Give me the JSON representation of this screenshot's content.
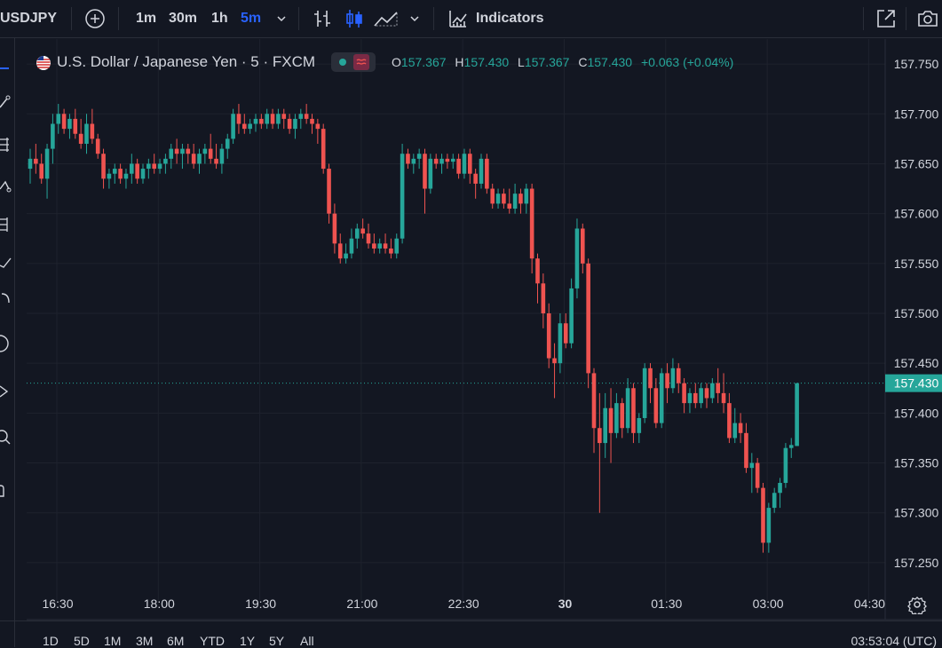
{
  "toolbar": {
    "symbol": "USDJPY",
    "intervals": [
      "1m",
      "30m",
      "1h",
      "5m"
    ],
    "active_interval": "5m",
    "indicators_label": "Indicators"
  },
  "legend": {
    "title": "U.S. Dollar / Japanese Yen · 5 · FXCM",
    "open_label": "O",
    "open": "157.367",
    "high_label": "H",
    "high": "157.430",
    "low_label": "L",
    "low": "157.367",
    "close_label": "C",
    "close": "157.430",
    "change": "+0.063 (+0.04%)"
  },
  "bottom": {
    "ranges": [
      "1D",
      "5D",
      "1M",
      "3M",
      "6M",
      "YTD",
      "1Y",
      "5Y",
      "All"
    ],
    "clock": "03:53:04 (UTC)"
  },
  "colors": {
    "up": "#26a69a",
    "down": "#ef5350",
    "background": "#131722",
    "grid": "#1e222d"
  },
  "chart_data": {
    "type": "candlestick",
    "ylim": [
      157.225,
      157.775
    ],
    "y_ticks": [
      "157.750",
      "157.700",
      "157.650",
      "157.600",
      "157.550",
      "157.500",
      "157.450",
      "157.400",
      "157.350",
      "157.300",
      "157.250"
    ],
    "x_ticks": [
      {
        "label": "16:30",
        "t": 0
      },
      {
        "label": "18:00",
        "t": 18
      },
      {
        "label": "19:30",
        "t": 36
      },
      {
        "label": "21:00",
        "t": 54
      },
      {
        "label": "22:30",
        "t": 72
      },
      {
        "label": "30",
        "t": 90,
        "bold": true
      },
      {
        "label": "01:30",
        "t": 108
      },
      {
        "label": "03:00",
        "t": 126
      },
      {
        "label": "04:30",
        "t": 144
      }
    ],
    "last_price": "157.430",
    "last_value": 157.43,
    "candles": [
      [
        157.645,
        157.665,
        157.63,
        157.655
      ],
      [
        157.655,
        157.67,
        157.64,
        157.65
      ],
      [
        157.65,
        157.66,
        157.63,
        157.635
      ],
      [
        157.635,
        157.67,
        157.615,
        157.665
      ],
      [
        157.665,
        157.7,
        157.65,
        157.69
      ],
      [
        157.69,
        157.71,
        157.68,
        157.7
      ],
      [
        157.7,
        157.705,
        157.68,
        157.685
      ],
      [
        157.685,
        157.7,
        157.675,
        157.695
      ],
      [
        157.695,
        157.705,
        157.675,
        157.68
      ],
      [
        157.68,
        157.695,
        157.665,
        157.67
      ],
      [
        157.67,
        157.7,
        157.66,
        157.69
      ],
      [
        157.69,
        157.705,
        157.67,
        157.675
      ],
      [
        157.675,
        157.68,
        157.655,
        157.66
      ],
      [
        157.66,
        157.665,
        157.625,
        157.635
      ],
      [
        157.635,
        157.645,
        157.625,
        157.64
      ],
      [
        157.64,
        157.65,
        157.63,
        157.645
      ],
      [
        157.645,
        157.65,
        157.63,
        157.635
      ],
      [
        157.635,
        157.645,
        157.625,
        157.64
      ],
      [
        157.64,
        157.66,
        157.63,
        157.65
      ],
      [
        157.65,
        157.655,
        157.63,
        157.635
      ],
      [
        157.635,
        157.65,
        157.63,
        157.645
      ],
      [
        157.645,
        157.655,
        157.635,
        157.65
      ],
      [
        157.65,
        157.66,
        157.64,
        157.645
      ],
      [
        157.645,
        157.655,
        157.64,
        157.65
      ],
      [
        157.65,
        157.66,
        157.64,
        157.655
      ],
      [
        157.655,
        157.67,
        157.645,
        157.665
      ],
      [
        157.665,
        157.675,
        157.65,
        157.66
      ],
      [
        157.66,
        157.67,
        157.645,
        157.665
      ],
      [
        157.665,
        157.67,
        157.65,
        157.66
      ],
      [
        157.66,
        157.67,
        157.645,
        157.65
      ],
      [
        157.65,
        157.665,
        157.64,
        157.66
      ],
      [
        157.66,
        157.67,
        157.65,
        157.665
      ],
      [
        157.665,
        157.68,
        157.65,
        157.655
      ],
      [
        157.655,
        157.67,
        157.645,
        157.65
      ],
      [
        157.65,
        157.67,
        157.64,
        157.665
      ],
      [
        157.665,
        157.68,
        157.655,
        157.675
      ],
      [
        157.675,
        157.705,
        157.67,
        157.7
      ],
      [
        157.7,
        157.71,
        157.68,
        157.69
      ],
      [
        157.69,
        157.7,
        157.68,
        157.685
      ],
      [
        157.685,
        157.695,
        157.68,
        157.69
      ],
      [
        157.69,
        157.7,
        157.682,
        157.695
      ],
      [
        157.695,
        157.7,
        157.685,
        157.69
      ],
      [
        157.69,
        157.705,
        157.685,
        157.7
      ],
      [
        157.7,
        157.705,
        157.685,
        157.69
      ],
      [
        157.69,
        157.705,
        157.685,
        157.7
      ],
      [
        157.7,
        157.705,
        157.685,
        157.695
      ],
      [
        157.695,
        157.7,
        157.68,
        157.685
      ],
      [
        157.685,
        157.7,
        157.675,
        157.695
      ],
      [
        157.695,
        157.705,
        157.685,
        157.7
      ],
      [
        157.7,
        157.71,
        157.69,
        157.695
      ],
      [
        157.695,
        157.7,
        157.68,
        157.69
      ],
      [
        157.69,
        157.695,
        157.67,
        157.685
      ],
      [
        157.685,
        157.69,
        157.64,
        157.645
      ],
      [
        157.645,
        157.65,
        157.59,
        157.6
      ],
      [
        157.6,
        157.61,
        157.56,
        157.57
      ],
      [
        157.57,
        157.58,
        157.55,
        157.555
      ],
      [
        157.555,
        157.57,
        157.55,
        157.56
      ],
      [
        157.56,
        157.585,
        157.555,
        157.575
      ],
      [
        157.575,
        157.59,
        157.565,
        157.585
      ],
      [
        157.585,
        157.595,
        157.575,
        157.58
      ],
      [
        157.58,
        157.59,
        157.565,
        157.57
      ],
      [
        157.57,
        157.58,
        157.56,
        157.565
      ],
      [
        157.565,
        157.575,
        157.56,
        157.57
      ],
      [
        157.57,
        157.58,
        157.56,
        157.565
      ],
      [
        157.565,
        157.575,
        157.555,
        157.56
      ],
      [
        157.56,
        157.58,
        157.555,
        157.575
      ],
      [
        157.575,
        157.67,
        157.57,
        157.66
      ],
      [
        157.66,
        157.665,
        157.645,
        157.65
      ],
      [
        157.65,
        157.66,
        157.64,
        157.655
      ],
      [
        157.655,
        157.665,
        157.645,
        157.66
      ],
      [
        157.66,
        157.665,
        157.6,
        157.625
      ],
      [
        157.625,
        157.66,
        157.62,
        157.655
      ],
      [
        157.655,
        157.66,
        157.645,
        157.65
      ],
      [
        157.65,
        157.66,
        157.64,
        157.655
      ],
      [
        157.655,
        157.66,
        157.645,
        157.652
      ],
      [
        157.652,
        157.66,
        157.645,
        157.655
      ],
      [
        157.655,
        157.66,
        157.635,
        157.64
      ],
      [
        157.64,
        157.665,
        157.635,
        157.66
      ],
      [
        157.66,
        157.665,
        157.63,
        157.64
      ],
      [
        157.64,
        157.645,
        157.615,
        157.63
      ],
      [
        157.63,
        157.66,
        157.625,
        157.655
      ],
      [
        157.655,
        157.66,
        157.62,
        157.625
      ],
      [
        157.625,
        157.63,
        157.605,
        157.61
      ],
      [
        157.61,
        157.625,
        157.605,
        157.62
      ],
      [
        157.62,
        157.625,
        157.605,
        157.61
      ],
      [
        157.61,
        157.625,
        157.6,
        157.605
      ],
      [
        157.605,
        157.63,
        157.6,
        157.62
      ],
      [
        157.62,
        157.625,
        157.6,
        157.61
      ],
      [
        157.61,
        157.63,
        157.6,
        157.625
      ],
      [
        157.625,
        157.63,
        157.54,
        157.555
      ],
      [
        157.555,
        157.56,
        157.51,
        157.53
      ],
      [
        157.53,
        157.54,
        157.485,
        157.5
      ],
      [
        157.5,
        157.51,
        157.445,
        157.455
      ],
      [
        157.455,
        157.47,
        157.415,
        157.45
      ],
      [
        157.45,
        157.5,
        157.44,
        157.49
      ],
      [
        157.49,
        157.5,
        157.465,
        157.47
      ],
      [
        157.47,
        157.535,
        157.465,
        157.525
      ],
      [
        157.525,
        157.595,
        157.515,
        157.585
      ],
      [
        157.585,
        157.59,
        157.54,
        157.55
      ],
      [
        157.55,
        157.555,
        157.425,
        157.44
      ],
      [
        157.44,
        157.445,
        157.36,
        157.385
      ],
      [
        157.385,
        157.42,
        157.3,
        157.37
      ],
      [
        157.37,
        157.42,
        157.355,
        157.405
      ],
      [
        157.405,
        157.425,
        157.35,
        157.38
      ],
      [
        157.38,
        157.42,
        157.375,
        157.41
      ],
      [
        157.41,
        157.415,
        157.375,
        157.385
      ],
      [
        157.385,
        157.435,
        157.38,
        157.425
      ],
      [
        157.425,
        157.43,
        157.37,
        157.38
      ],
      [
        157.38,
        157.4,
        157.37,
        157.395
      ],
      [
        157.395,
        157.45,
        157.39,
        157.445
      ],
      [
        157.445,
        157.45,
        157.41,
        157.425
      ],
      [
        157.425,
        157.435,
        157.385,
        157.39
      ],
      [
        157.39,
        157.445,
        157.385,
        157.44
      ],
      [
        157.44,
        157.45,
        157.41,
        157.425
      ],
      [
        157.425,
        157.455,
        157.42,
        157.445
      ],
      [
        157.445,
        157.45,
        157.42,
        157.43
      ],
      [
        157.43,
        157.435,
        157.4,
        157.41
      ],
      [
        157.41,
        157.425,
        157.4,
        157.42
      ],
      [
        157.42,
        157.43,
        157.405,
        157.41
      ],
      [
        157.41,
        157.43,
        157.405,
        157.425
      ],
      [
        157.425,
        157.43,
        157.405,
        157.415
      ],
      [
        157.415,
        157.435,
        157.41,
        157.43
      ],
      [
        157.43,
        157.445,
        157.41,
        157.42
      ],
      [
        157.42,
        157.44,
        157.4,
        157.41
      ],
      [
        157.41,
        157.42,
        157.37,
        157.375
      ],
      [
        157.375,
        157.405,
        157.37,
        157.39
      ],
      [
        157.39,
        157.4,
        157.37,
        157.38
      ],
      [
        157.38,
        157.39,
        157.34,
        157.345
      ],
      [
        157.345,
        157.36,
        157.32,
        157.35
      ],
      [
        157.35,
        157.355,
        157.32,
        157.325
      ],
      [
        157.325,
        157.33,
        157.26,
        157.27
      ],
      [
        157.27,
        157.31,
        157.26,
        157.305
      ],
      [
        157.305,
        157.325,
        157.3,
        157.32
      ],
      [
        157.32,
        157.335,
        157.305,
        157.33
      ],
      [
        157.33,
        157.37,
        157.325,
        157.365
      ],
      [
        157.365,
        157.375,
        157.355,
        157.368
      ],
      [
        157.367,
        157.43,
        157.367,
        157.43
      ]
    ]
  }
}
